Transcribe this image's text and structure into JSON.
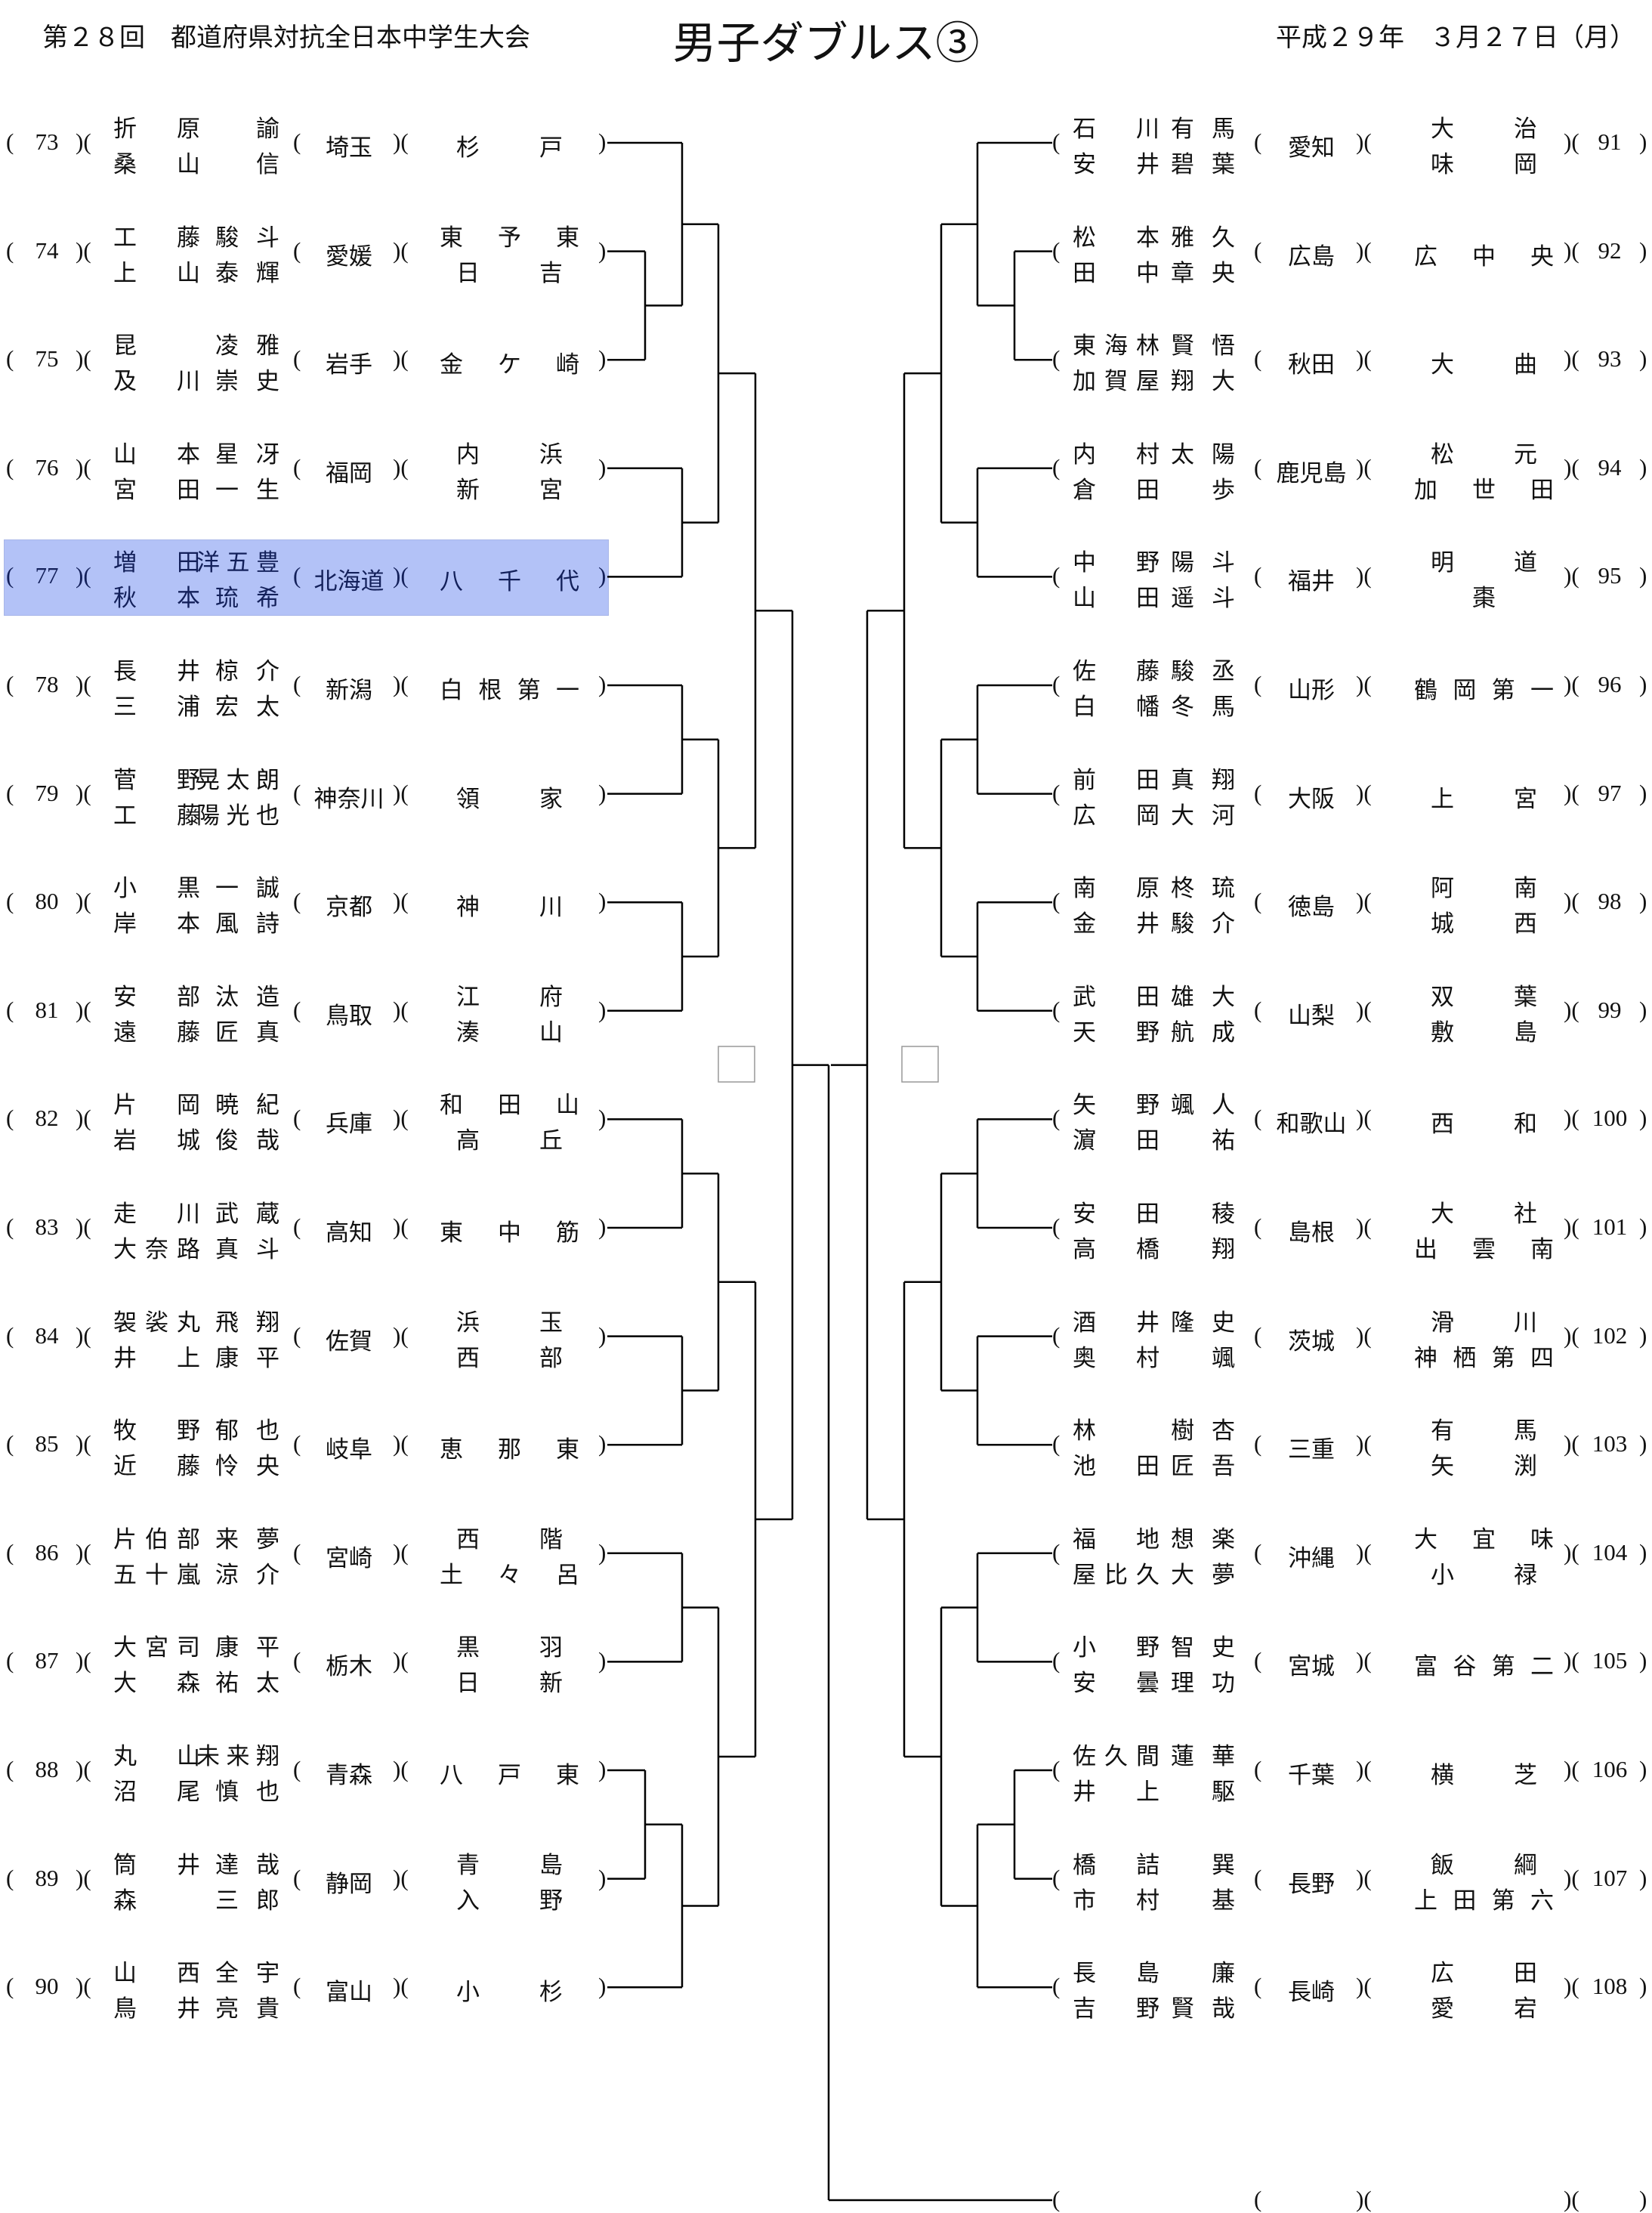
{
  "header": {
    "left": "第２８回　都道府県対抗全日本中学生大会",
    "title": "男子ダブルス③",
    "date": "平成２９年　３月２７日（月）"
  },
  "highlight_color": "#b3c2f7",
  "highlighted_entry": "77",
  "left": [
    {
      "num": "73",
      "players": [
        [
          "折原",
          "諭"
        ],
        [
          "桑山",
          "信"
        ]
      ],
      "pref": "埼玉",
      "school": [
        "杉戸"
      ]
    },
    {
      "num": "74",
      "players": [
        [
          "工藤",
          "駿斗"
        ],
        [
          "上山",
          "泰輝"
        ]
      ],
      "pref": "愛媛",
      "school": [
        "東予東",
        "日吉"
      ]
    },
    {
      "num": "75",
      "players": [
        [
          "昆",
          "凌雅"
        ],
        [
          "及川",
          "崇史"
        ]
      ],
      "pref": "岩手",
      "school": [
        "金ケ崎"
      ]
    },
    {
      "num": "76",
      "players": [
        [
          "山本",
          "星冴"
        ],
        [
          "宮田",
          "一生"
        ]
      ],
      "pref": "福岡",
      "school": [
        "内浜",
        "新宮"
      ]
    },
    {
      "num": "77",
      "players": [
        [
          "増田",
          "洋五豊"
        ],
        [
          "秋本",
          "琉希"
        ]
      ],
      "pref": "北海道",
      "school": [
        "八千代"
      ]
    },
    {
      "num": "78",
      "players": [
        [
          "長井",
          "椋介"
        ],
        [
          "三浦",
          "宏太"
        ]
      ],
      "pref": "新潟",
      "school": [
        "白根第一"
      ]
    },
    {
      "num": "79",
      "players": [
        [
          "菅野",
          "晃太朗"
        ],
        [
          "工藤",
          "陽光也"
        ]
      ],
      "pref": "神奈川",
      "school": [
        "領家"
      ]
    },
    {
      "num": "80",
      "players": [
        [
          "小黒",
          "一誠"
        ],
        [
          "岸本",
          "風詩"
        ]
      ],
      "pref": "京都",
      "school": [
        "神川"
      ]
    },
    {
      "num": "81",
      "players": [
        [
          "安部",
          "汰造"
        ],
        [
          "遠藤",
          "匠真"
        ]
      ],
      "pref": "鳥取",
      "school": [
        "江府",
        "湊山"
      ]
    },
    {
      "num": "82",
      "players": [
        [
          "片岡",
          "暁紀"
        ],
        [
          "岩城",
          "俊哉"
        ]
      ],
      "pref": "兵庫",
      "school": [
        "和田山",
        "高丘"
      ]
    },
    {
      "num": "83",
      "players": [
        [
          "走川",
          "武蔵"
        ],
        [
          "大奈路",
          "真斗"
        ]
      ],
      "pref": "高知",
      "school": [
        "東中筋"
      ]
    },
    {
      "num": "84",
      "players": [
        [
          "袈裟丸",
          "飛翔"
        ],
        [
          "井上",
          "康平"
        ]
      ],
      "pref": "佐賀",
      "school": [
        "浜玉",
        "西部"
      ]
    },
    {
      "num": "85",
      "players": [
        [
          "牧野",
          "郁也"
        ],
        [
          "近藤",
          "怜央"
        ]
      ],
      "pref": "岐阜",
      "school": [
        "恵那東"
      ]
    },
    {
      "num": "86",
      "players": [
        [
          "片伯部",
          "来夢"
        ],
        [
          "五十嵐",
          "涼介"
        ]
      ],
      "pref": "宮崎",
      "school": [
        "西階",
        "土々呂"
      ]
    },
    {
      "num": "87",
      "players": [
        [
          "大宮司",
          "康平"
        ],
        [
          "大森",
          "祐太"
        ]
      ],
      "pref": "栃木",
      "school": [
        "黒羽",
        "日新"
      ]
    },
    {
      "num": "88",
      "players": [
        [
          "丸山",
          "未来翔"
        ],
        [
          "沼尾",
          "慎也"
        ]
      ],
      "pref": "青森",
      "school": [
        "八戸東"
      ]
    },
    {
      "num": "89",
      "players": [
        [
          "筒井",
          "達哉"
        ],
        [
          "森",
          "三郎"
        ]
      ],
      "pref": "静岡",
      "school": [
        "青島",
        "入野"
      ]
    },
    {
      "num": "90",
      "players": [
        [
          "山西",
          "全宇"
        ],
        [
          "鳥井",
          "亮貴"
        ]
      ],
      "pref": "富山",
      "school": [
        "小杉"
      ]
    }
  ],
  "right": [
    {
      "num": "91",
      "players": [
        [
          "石川",
          "有馬"
        ],
        [
          "安井",
          "碧葉"
        ]
      ],
      "pref": "愛知",
      "school": [
        "大治",
        "味岡"
      ]
    },
    {
      "num": "92",
      "players": [
        [
          "松本",
          "雅久"
        ],
        [
          "田中",
          "章央"
        ]
      ],
      "pref": "広島",
      "school": [
        "広中央"
      ]
    },
    {
      "num": "93",
      "players": [
        [
          "東海林",
          "賢悟"
        ],
        [
          "加賀屋",
          "翔大"
        ]
      ],
      "pref": "秋田",
      "school": [
        "大曲"
      ]
    },
    {
      "num": "94",
      "players": [
        [
          "内村",
          "太陽"
        ],
        [
          "倉田",
          "歩"
        ]
      ],
      "pref": "鹿児島",
      "school": [
        "松元",
        "加世田"
      ]
    },
    {
      "num": "95",
      "players": [
        [
          "中野",
          "陽斗"
        ],
        [
          "山田",
          "遥斗"
        ]
      ],
      "pref": "福井",
      "school": [
        "明道",
        "棗"
      ]
    },
    {
      "num": "96",
      "players": [
        [
          "佐藤",
          "駿丞"
        ],
        [
          "白幡",
          "冬馬"
        ]
      ],
      "pref": "山形",
      "school": [
        "鶴岡第一"
      ]
    },
    {
      "num": "97",
      "players": [
        [
          "前田",
          "真翔"
        ],
        [
          "広岡",
          "大河"
        ]
      ],
      "pref": "大阪",
      "school": [
        "上宮"
      ]
    },
    {
      "num": "98",
      "players": [
        [
          "南原",
          "柊琉"
        ],
        [
          "金井",
          "駿介"
        ]
      ],
      "pref": "徳島",
      "school": [
        "阿南",
        "城西"
      ]
    },
    {
      "num": "99",
      "players": [
        [
          "武田",
          "雄大"
        ],
        [
          "天野",
          "航成"
        ]
      ],
      "pref": "山梨",
      "school": [
        "双葉",
        "敷島"
      ]
    },
    {
      "num": "100",
      "players": [
        [
          "矢野",
          "颯人"
        ],
        [
          "濵田",
          "祐"
        ]
      ],
      "pref": "和歌山",
      "school": [
        "西和"
      ]
    },
    {
      "num": "101",
      "players": [
        [
          "安田",
          "稜"
        ],
        [
          "高橋",
          "翔"
        ]
      ],
      "pref": "島根",
      "school": [
        "大社",
        "出雲南"
      ]
    },
    {
      "num": "102",
      "players": [
        [
          "酒井",
          "隆史"
        ],
        [
          "奥村",
          "颯"
        ]
      ],
      "pref": "茨城",
      "school": [
        "滑川",
        "神栖第四"
      ]
    },
    {
      "num": "103",
      "players": [
        [
          "林",
          "樹杏"
        ],
        [
          "池田",
          "匠吾"
        ]
      ],
      "pref": "三重",
      "school": [
        "有馬",
        "矢渕"
      ]
    },
    {
      "num": "104",
      "players": [
        [
          "福地",
          "想楽"
        ],
        [
          "屋比久",
          "大夢"
        ]
      ],
      "pref": "沖縄",
      "school": [
        "大宜味",
        "小禄"
      ]
    },
    {
      "num": "105",
      "players": [
        [
          "小野",
          "智史"
        ],
        [
          "安曇",
          "理功"
        ]
      ],
      "pref": "宮城",
      "school": [
        "富谷第二"
      ]
    },
    {
      "num": "106",
      "players": [
        [
          "佐久間",
          "蓮華"
        ],
        [
          "井上",
          "駆"
        ]
      ],
      "pref": "千葉",
      "school": [
        "横芝"
      ]
    },
    {
      "num": "107",
      "players": [
        [
          "橋詰",
          "巽"
        ],
        [
          "市村",
          "基"
        ]
      ],
      "pref": "長野",
      "school": [
        "飯綱",
        "上田第六"
      ]
    },
    {
      "num": "108",
      "players": [
        [
          "長島",
          "廉"
        ],
        [
          "吉野",
          "賢哉"
        ]
      ],
      "pref": "長崎",
      "school": [
        "広田",
        "愛宕"
      ]
    }
  ],
  "final_row": {
    "num": "",
    "players": [],
    "pref": "",
    "school": []
  }
}
